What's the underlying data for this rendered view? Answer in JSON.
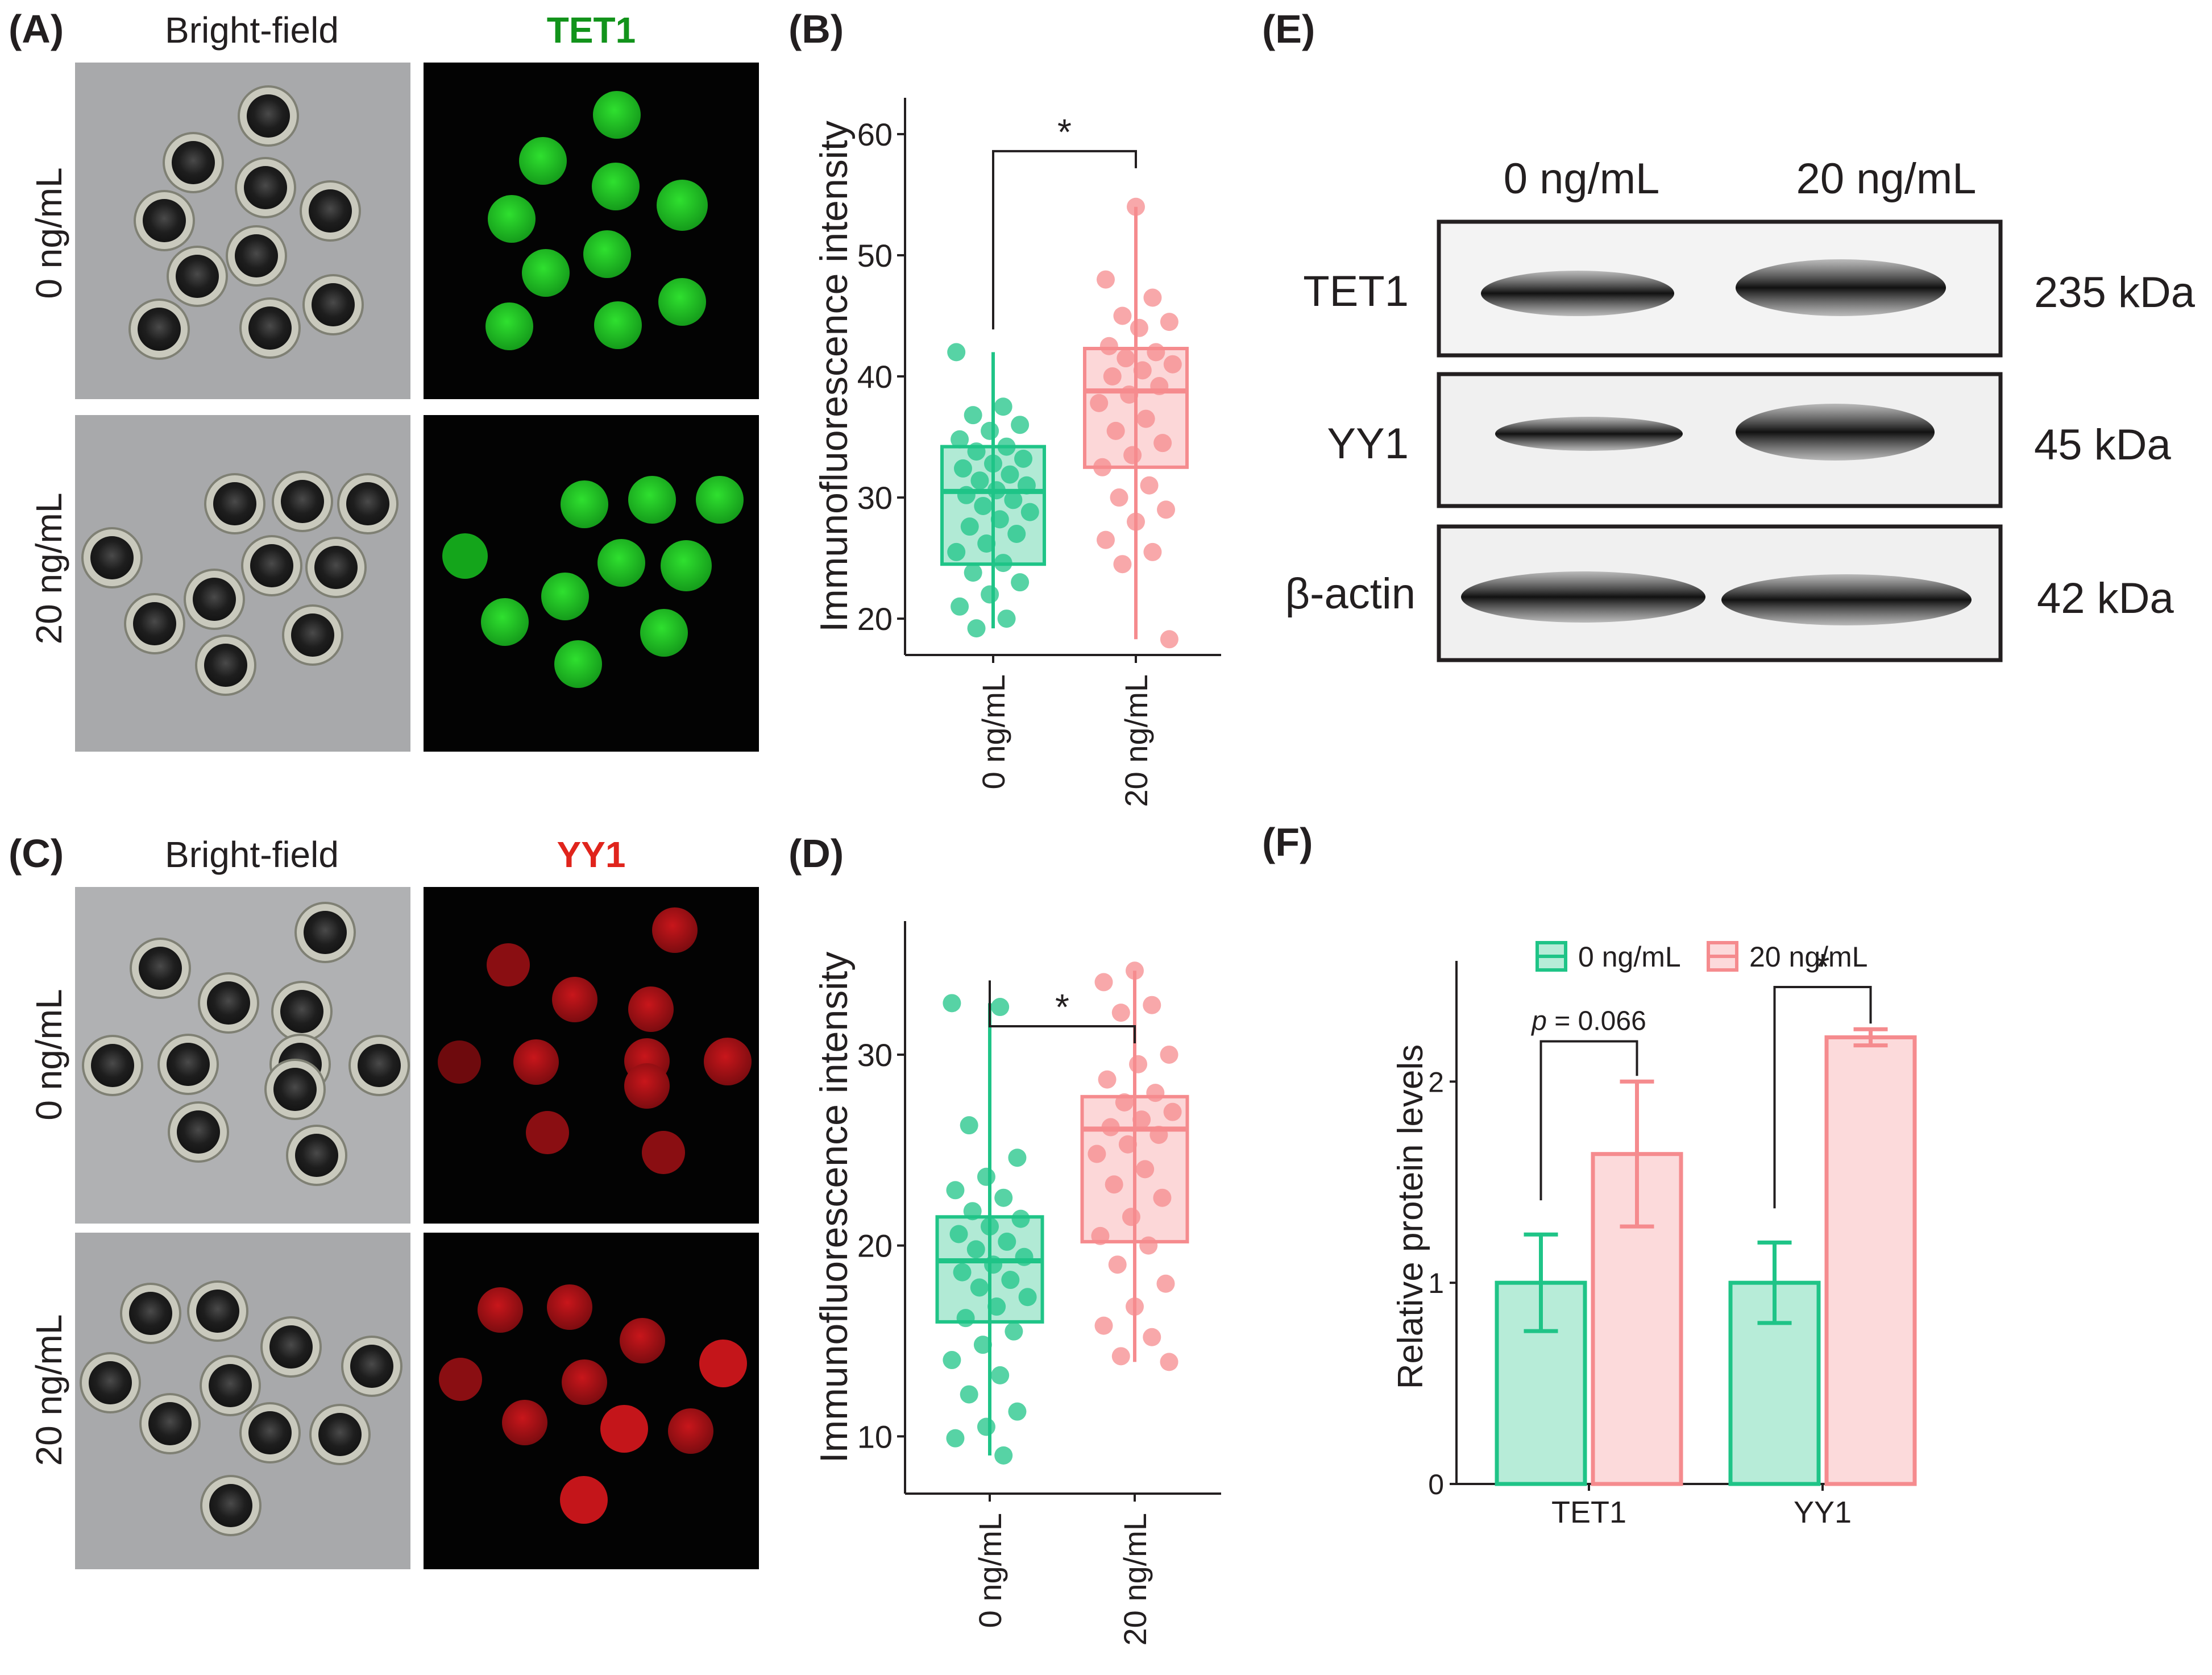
{
  "colors": {
    "control": "#1fc487",
    "treated": "#f58b8e",
    "tet1_stain": "#22c22a",
    "yy1_stain": "#b81418",
    "title_green": "#12931b",
    "title_red": "#e0241c",
    "axis": "#231f20",
    "micro_bg": "#a8a9ab",
    "fluor_bg": "#030303"
  },
  "panel_A": {
    "label": "(A)",
    "col_titles": [
      "Bright-field",
      "TET1"
    ],
    "row_labels": [
      "0 ng/mL",
      "20 ng/mL"
    ]
  },
  "panel_C": {
    "label": "(C)",
    "col_titles": [
      "Bright-field",
      "YY1"
    ],
    "row_labels": [
      "0 ng/mL",
      "20 ng/mL"
    ]
  },
  "panel_E": {
    "label": "(E)",
    "lane_labels": [
      "0 ng/mL",
      "20 ng/mL"
    ],
    "bands": [
      {
        "protein": "TET1",
        "size": "235 kDa"
      },
      {
        "protein": "YY1",
        "size": "45 kDa"
      },
      {
        "protein": "β-actin",
        "size": "42 kDa"
      }
    ]
  },
  "chart_data": [
    {
      "panel": "(B)",
      "type": "box",
      "ylabel": "Immunofluorescence intensity",
      "categories": [
        "0 ng/mL",
        "20 ng/mL"
      ],
      "ylim": [
        17,
        63
      ],
      "yticks": [
        20,
        30,
        40,
        50,
        60
      ],
      "significance": "*",
      "series": [
        {
          "name": "0 ng/mL",
          "q1": 24.5,
          "median": 30.5,
          "q3": 34.2,
          "whisker_low": 19.2,
          "whisker_high": 42.0,
          "points": [
            42.0,
            37.5,
            36.8,
            36.0,
            35.5,
            34.8,
            34.2,
            33.8,
            33.2,
            32.8,
            32.4,
            31.9,
            31.4,
            31.0,
            30.6,
            30.2,
            29.8,
            29.3,
            28.8,
            28.2,
            27.6,
            27.0,
            26.2,
            25.5,
            24.6,
            23.8,
            23.0,
            22.0,
            21.0,
            20.0,
            19.2
          ]
        },
        {
          "name": "20 ng/mL",
          "q1": 32.5,
          "median": 38.8,
          "q3": 42.3,
          "whisker_low": 18.3,
          "whisker_high": 54.0,
          "points": [
            54.0,
            48.0,
            46.5,
            45.0,
            44.5,
            44.0,
            42.5,
            42.0,
            41.5,
            41.0,
            40.5,
            40.0,
            39.2,
            38.5,
            37.8,
            36.5,
            35.5,
            34.5,
            33.5,
            32.5,
            31.0,
            30.0,
            29.0,
            28.0,
            26.5,
            25.5,
            24.5,
            18.3
          ]
        }
      ]
    },
    {
      "panel": "(D)",
      "type": "box",
      "ylabel": "Immunofluorescence intensity",
      "categories": [
        "0 ng/mL",
        "20 ng/mL"
      ],
      "ylim": [
        7,
        37
      ],
      "yticks": [
        10,
        20,
        30
      ],
      "significance": "*",
      "series": [
        {
          "name": "0 ng/mL",
          "q1": 16.0,
          "median": 19.2,
          "q3": 21.5,
          "whisker_low": 9.0,
          "whisker_high": 32.7,
          "points": [
            32.7,
            32.5,
            26.3,
            24.6,
            23.6,
            22.9,
            22.5,
            21.8,
            21.4,
            21.0,
            20.6,
            20.2,
            19.8,
            19.4,
            19.0,
            18.6,
            18.2,
            17.8,
            17.3,
            16.8,
            16.2,
            15.5,
            14.8,
            14.0,
            13.2,
            12.2,
            11.3,
            10.5,
            9.9,
            9.0
          ]
        },
        {
          "name": "20 ng/mL",
          "q1": 20.2,
          "median": 26.1,
          "q3": 27.8,
          "whisker_low": 13.9,
          "whisker_high": 34.4,
          "points": [
            34.4,
            33.8,
            32.6,
            32.2,
            30.0,
            29.5,
            28.7,
            28.0,
            27.5,
            27.0,
            26.6,
            26.2,
            25.8,
            25.3,
            24.8,
            24.0,
            23.2,
            22.5,
            21.5,
            20.5,
            20.0,
            19.0,
            18.0,
            16.8,
            15.8,
            15.2,
            14.2,
            13.9
          ]
        }
      ]
    },
    {
      "panel": "(F)",
      "type": "bar",
      "ylabel": "Relative protein levels",
      "categories": [
        "TET1",
        "YY1"
      ],
      "ylim": [
        0,
        2.6
      ],
      "yticks": [
        0,
        1,
        2
      ],
      "series": [
        {
          "name": "0 ng/mL",
          "values": [
            1.0,
            1.0
          ],
          "err_low": [
            0.76,
            0.8
          ],
          "err_high": [
            1.24,
            1.2
          ]
        },
        {
          "name": "20 ng/mL",
          "values": [
            1.64,
            2.22
          ],
          "err_low": [
            1.28,
            2.18
          ],
          "err_high": [
            2.0,
            2.26
          ]
        }
      ],
      "annotations": [
        {
          "category": "TET1",
          "text": "= 0.066",
          "italic_prefix": "p"
        },
        {
          "category": "YY1",
          "text": "*"
        }
      ],
      "legend": "top"
    }
  ]
}
